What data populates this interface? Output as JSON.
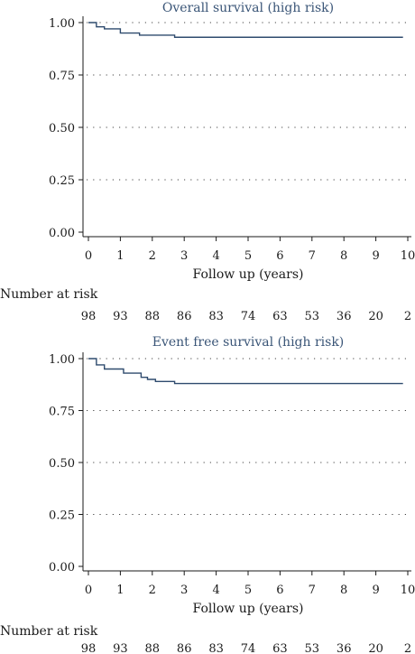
{
  "chart_data": [
    {
      "type": "line",
      "title": "Overall survival (high risk)",
      "xlabel": "Follow up (years)",
      "ylabel": "",
      "xlim": [
        0,
        10
      ],
      "ylim": [
        0,
        1
      ],
      "xticks": [
        0,
        1,
        2,
        3,
        4,
        5,
        6,
        7,
        8,
        9,
        10
      ],
      "yticks": [
        "0.00",
        "0.25",
        "0.50",
        "0.75",
        "1.00"
      ],
      "grid": "horizontal dotted",
      "line_color": "#2f4b6e",
      "steps": [
        [
          0,
          1.0
        ],
        [
          0.25,
          0.98
        ],
        [
          0.5,
          0.97
        ],
        [
          1.0,
          0.95
        ],
        [
          1.6,
          0.94
        ],
        [
          2.7,
          0.93
        ],
        [
          9.85,
          0.93
        ]
      ],
      "risk_table": {
        "label": "Number at risk",
        "counts": [
          "98",
          "93",
          "88",
          "86",
          "83",
          "74",
          "63",
          "53",
          "36",
          "20",
          "2"
        ]
      }
    },
    {
      "type": "line",
      "title": "Event free survival (high risk)",
      "xlabel": "Follow up (years)",
      "ylabel": "",
      "xlim": [
        0,
        10
      ],
      "ylim": [
        0,
        1
      ],
      "xticks": [
        0,
        1,
        2,
        3,
        4,
        5,
        6,
        7,
        8,
        9,
        10
      ],
      "yticks": [
        "0.00",
        "0.25",
        "0.50",
        "0.75",
        "1.00"
      ],
      "grid": "horizontal dotted",
      "line_color": "#2f4b6e",
      "steps": [
        [
          0,
          1.0
        ],
        [
          0.25,
          0.97
        ],
        [
          0.5,
          0.95
        ],
        [
          1.1,
          0.93
        ],
        [
          1.65,
          0.91
        ],
        [
          1.85,
          0.9
        ],
        [
          2.1,
          0.89
        ],
        [
          2.7,
          0.88
        ],
        [
          9.85,
          0.88
        ]
      ],
      "risk_table": {
        "label": "Number at risk",
        "counts": [
          "98",
          "93",
          "88",
          "86",
          "83",
          "74",
          "63",
          "53",
          "36",
          "20",
          "2"
        ]
      }
    }
  ]
}
